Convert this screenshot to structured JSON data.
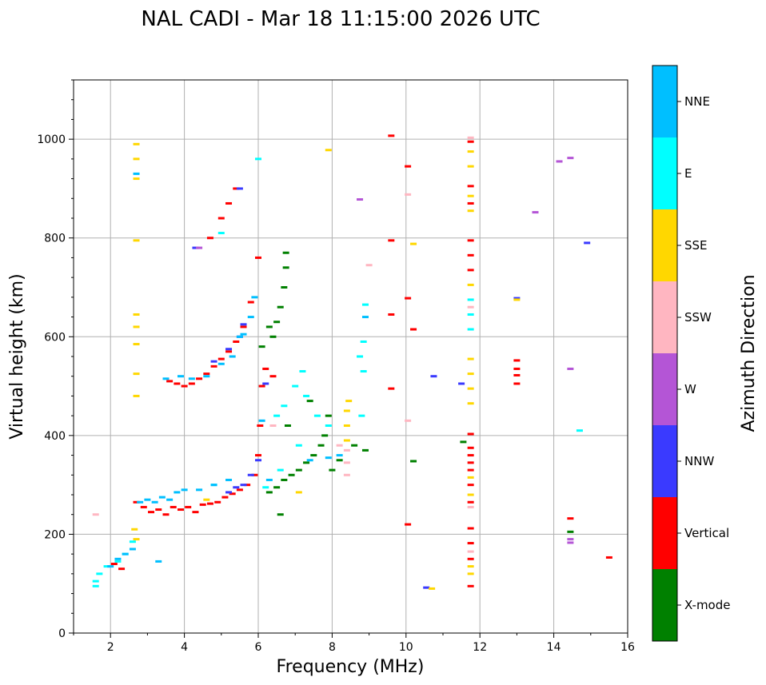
{
  "chart_data": {
    "type": "scatter",
    "title": "NAL CADI - Mar 18 11:15:00 2026 UTC",
    "xlabel": "Frequency (MHz)",
    "ylabel": "Virtual height (km)",
    "xlim": [
      1,
      16
    ],
    "ylim": [
      0,
      1120
    ],
    "xticks": [
      2,
      4,
      6,
      8,
      10,
      12,
      14,
      16
    ],
    "xtick_labels": [
      "2",
      "4",
      "6",
      "8",
      "10",
      "12",
      "14",
      "16"
    ],
    "yticks": [
      0,
      200,
      400,
      600,
      800,
      1000
    ],
    "ytick_labels": [
      "0",
      "200",
      "400",
      "600",
      "800",
      "1000"
    ],
    "grid": true,
    "colorbar": {
      "label": "Azimuth Direction",
      "categories": [
        {
          "name": "X-mode",
          "color": "#008000"
        },
        {
          "name": "Vertical",
          "color": "#ff0000"
        },
        {
          "name": "NNW",
          "color": "#3a3aff"
        },
        {
          "name": "W",
          "color": "#b455d6"
        },
        {
          "name": "SSW",
          "color": "#ffb6c1"
        },
        {
          "name": "SSE",
          "color": "#ffd700"
        },
        {
          "name": "E",
          "color": "#00ffff"
        },
        {
          "name": "NNE",
          "color": "#00bfff"
        }
      ]
    },
    "series": [
      {
        "name": "Vertical",
        "values": [
          [
            2.7,
            265
          ],
          [
            2.9,
            255
          ],
          [
            3.1,
            245
          ],
          [
            3.3,
            250
          ],
          [
            3.5,
            240
          ],
          [
            3.7,
            255
          ],
          [
            3.9,
            250
          ],
          [
            4.1,
            255
          ],
          [
            4.3,
            245
          ],
          [
            4.5,
            260
          ],
          [
            4.7,
            262
          ],
          [
            4.9,
            265
          ],
          [
            5.1,
            275
          ],
          [
            5.3,
            282
          ],
          [
            5.5,
            290
          ],
          [
            5.7,
            300
          ],
          [
            5.9,
            320
          ],
          [
            6.0,
            360
          ],
          [
            6.05,
            420
          ],
          [
            6.1,
            500
          ],
          [
            6.2,
            535
          ],
          [
            6.4,
            520
          ],
          [
            3.6,
            510
          ],
          [
            3.8,
            505
          ],
          [
            4.0,
            500
          ],
          [
            4.2,
            505
          ],
          [
            4.4,
            515
          ],
          [
            4.6,
            525
          ],
          [
            4.8,
            540
          ],
          [
            5.0,
            555
          ],
          [
            5.2,
            570
          ],
          [
            5.4,
            590
          ],
          [
            5.6,
            620
          ],
          [
            5.8,
            670
          ],
          [
            6.0,
            760
          ],
          [
            4.7,
            800
          ],
          [
            5.0,
            840
          ],
          [
            5.2,
            870
          ],
          [
            5.4,
            900
          ],
          [
            9.6,
            1007
          ],
          [
            9.6,
            795
          ],
          [
            9.6,
            645
          ],
          [
            9.6,
            495
          ],
          [
            10.05,
            945
          ],
          [
            10.05,
            678
          ],
          [
            10.2,
            615
          ],
          [
            10.05,
            220
          ],
          [
            11.75,
            995
          ],
          [
            11.75,
            905
          ],
          [
            11.75,
            870
          ],
          [
            11.75,
            795
          ],
          [
            11.75,
            765
          ],
          [
            11.75,
            735
          ],
          [
            11.75,
            403
          ],
          [
            11.75,
            375
          ],
          [
            11.75,
            360
          ],
          [
            11.75,
            345
          ],
          [
            11.75,
            330
          ],
          [
            11.75,
            300
          ],
          [
            11.75,
            265
          ],
          [
            11.75,
            212
          ],
          [
            11.75,
            182
          ],
          [
            11.75,
            150
          ],
          [
            11.75,
            95
          ],
          [
            13.0,
            552
          ],
          [
            13.0,
            535
          ],
          [
            13.0,
            522
          ],
          [
            13.0,
            505
          ],
          [
            14.45,
            232
          ],
          [
            15.5,
            153
          ],
          [
            2.1,
            140
          ],
          [
            2.3,
            130
          ]
        ]
      },
      {
        "name": "X-mode",
        "values": [
          [
            6.3,
            285
          ],
          [
            6.5,
            295
          ],
          [
            6.7,
            310
          ],
          [
            6.9,
            320
          ],
          [
            7.1,
            330
          ],
          [
            7.3,
            345
          ],
          [
            7.5,
            360
          ],
          [
            7.7,
            380
          ],
          [
            7.8,
            400
          ],
          [
            7.9,
            440
          ],
          [
            6.4,
            600
          ],
          [
            6.5,
            630
          ],
          [
            6.6,
            660
          ],
          [
            6.7,
            700
          ],
          [
            6.75,
            740
          ],
          [
            6.75,
            770
          ],
          [
            6.3,
            620
          ],
          [
            6.6,
            240
          ],
          [
            8.0,
            330
          ],
          [
            8.2,
            350
          ],
          [
            8.6,
            380
          ],
          [
            8.9,
            370
          ],
          [
            10.2,
            348
          ],
          [
            11.55,
            387
          ],
          [
            14.45,
            205
          ],
          [
            6.1,
            580
          ],
          [
            6.8,
            420
          ],
          [
            7.4,
            470
          ]
        ]
      },
      {
        "name": "NNW",
        "values": [
          [
            5.2,
            285
          ],
          [
            5.4,
            295
          ],
          [
            5.6,
            300
          ],
          [
            5.8,
            320
          ],
          [
            6.0,
            350
          ],
          [
            4.8,
            550
          ],
          [
            5.2,
            575
          ],
          [
            5.5,
            600
          ],
          [
            5.6,
            625
          ],
          [
            6.2,
            505
          ],
          [
            10.55,
            92
          ],
          [
            10.75,
            520
          ],
          [
            11.5,
            505
          ],
          [
            13.0,
            678
          ],
          [
            14.9,
            790
          ],
          [
            4.3,
            780
          ],
          [
            5.5,
            900
          ]
        ]
      },
      {
        "name": "W",
        "values": [
          [
            8.75,
            878
          ],
          [
            14.15,
            955
          ],
          [
            14.45,
            962
          ],
          [
            14.45,
            535
          ],
          [
            14.45,
            190
          ],
          [
            14.45,
            183
          ],
          [
            13.5,
            852
          ],
          [
            4.4,
            780
          ]
        ]
      },
      {
        "name": "SSW",
        "values": [
          [
            8.4,
            320
          ],
          [
            8.4,
            345
          ],
          [
            8.4,
            370
          ],
          [
            8.2,
            380
          ],
          [
            10.05,
            888
          ],
          [
            10.05,
            430
          ],
          [
            11.75,
            1003
          ],
          [
            11.75,
            660
          ],
          [
            11.75,
            255
          ],
          [
            11.75,
            165
          ],
          [
            9.0,
            745
          ],
          [
            1.6,
            240
          ],
          [
            6.4,
            420
          ]
        ]
      },
      {
        "name": "SSE",
        "values": [
          [
            8.4,
            390
          ],
          [
            8.4,
            420
          ],
          [
            8.4,
            450
          ],
          [
            8.45,
            470
          ],
          [
            7.9,
            978
          ],
          [
            10.2,
            788
          ],
          [
            10.7,
            90
          ],
          [
            11.75,
            975
          ],
          [
            11.75,
            945
          ],
          [
            11.75,
            885
          ],
          [
            11.75,
            855
          ],
          [
            11.75,
            705
          ],
          [
            11.75,
            555
          ],
          [
            11.75,
            525
          ],
          [
            11.75,
            495
          ],
          [
            11.75,
            465
          ],
          [
            11.75,
            315
          ],
          [
            11.75,
            280
          ],
          [
            11.75,
            135
          ],
          [
            11.75,
            120
          ],
          [
            13.0,
            675
          ],
          [
            2.7,
            990
          ],
          [
            2.7,
            960
          ],
          [
            2.7,
            920
          ],
          [
            2.7,
            795
          ],
          [
            2.7,
            645
          ],
          [
            2.7,
            620
          ],
          [
            2.7,
            585
          ],
          [
            2.7,
            525
          ],
          [
            2.7,
            480
          ],
          [
            2.65,
            210
          ],
          [
            7.1,
            285
          ],
          [
            4.6,
            270
          ],
          [
            2.7,
            190
          ]
        ]
      },
      {
        "name": "E",
        "values": [
          [
            6.5,
            440
          ],
          [
            6.7,
            460
          ],
          [
            7.0,
            500
          ],
          [
            7.2,
            530
          ],
          [
            7.3,
            480
          ],
          [
            7.6,
            440
          ],
          [
            7.9,
            420
          ],
          [
            7.1,
            380
          ],
          [
            8.9,
            665
          ],
          [
            8.85,
            590
          ],
          [
            8.85,
            530
          ],
          [
            8.75,
            560
          ],
          [
            8.8,
            440
          ],
          [
            11.75,
            675
          ],
          [
            11.75,
            645
          ],
          [
            11.75,
            615
          ],
          [
            14.7,
            410
          ],
          [
            6.0,
            960
          ],
          [
            5.0,
            810
          ],
          [
            1.6,
            95
          ],
          [
            1.6,
            105
          ],
          [
            1.7,
            120
          ],
          [
            1.9,
            135
          ],
          [
            2.2,
            145
          ],
          [
            2.4,
            160
          ],
          [
            2.6,
            185
          ],
          [
            6.2,
            295
          ],
          [
            6.6,
            330
          ],
          [
            4.8,
            300
          ]
        ]
      },
      {
        "name": "NNE",
        "values": [
          [
            2.0,
            135
          ],
          [
            2.2,
            150
          ],
          [
            2.4,
            160
          ],
          [
            2.6,
            170
          ],
          [
            2.8,
            265
          ],
          [
            3.0,
            270
          ],
          [
            3.2,
            265
          ],
          [
            3.4,
            275
          ],
          [
            3.6,
            270
          ],
          [
            3.8,
            285
          ],
          [
            4.0,
            290
          ],
          [
            4.4,
            290
          ],
          [
            4.8,
            300
          ],
          [
            5.2,
            310
          ],
          [
            5.6,
            605
          ],
          [
            5.8,
            640
          ],
          [
            5.9,
            680
          ],
          [
            3.5,
            515
          ],
          [
            3.9,
            520
          ],
          [
            4.2,
            515
          ],
          [
            4.6,
            520
          ],
          [
            5.0,
            545
          ],
          [
            5.3,
            560
          ],
          [
            5.5,
            600
          ],
          [
            6.3,
            310
          ],
          [
            7.4,
            350
          ],
          [
            7.9,
            355
          ],
          [
            8.2,
            360
          ],
          [
            8.9,
            640
          ],
          [
            3.3,
            145
          ],
          [
            2.7,
            930
          ],
          [
            6.1,
            430
          ]
        ]
      }
    ]
  }
}
